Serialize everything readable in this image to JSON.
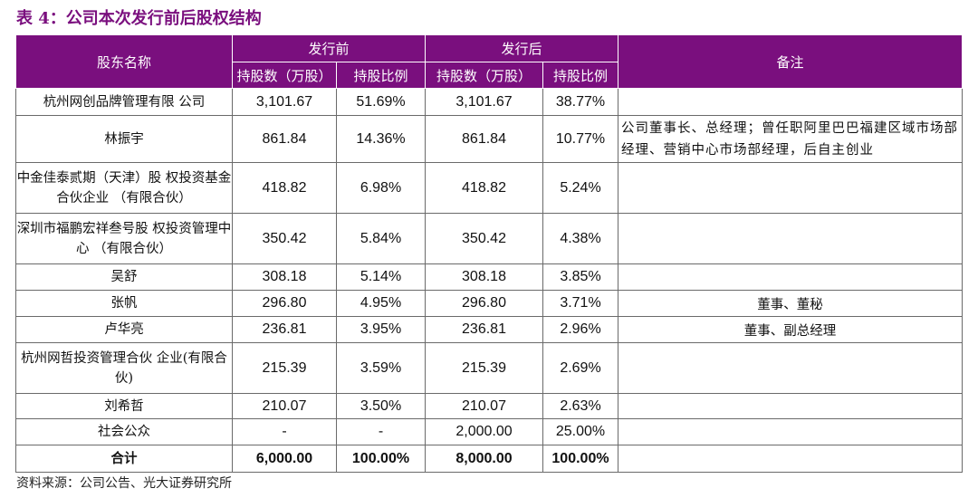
{
  "title": "表 4：公司本次发行前后股权结构",
  "header": {
    "shareholder_col": "股东名称",
    "before_group": "发行前",
    "after_group": "发行后",
    "remark_col": "备注",
    "shares_col": "持股数（万股）",
    "ratio_col": "持股比例"
  },
  "rows": [
    {
      "name": "杭州网创品牌管理有限 公司",
      "before_shares": "3,101.67",
      "before_ratio": "51.69%",
      "after_shares": "3,101.67",
      "after_ratio": "38.77%",
      "remark": ""
    },
    {
      "name": "林振宇",
      "before_shares": "861.84",
      "before_ratio": "14.36%",
      "after_shares": "861.84",
      "after_ratio": "10.77%",
      "remark": "公司董事长、总经理；曾任职阿里巴巴福建区域市场部经理、营销中心市场部经理，后自主创业"
    },
    {
      "name": "中金佳泰贰期（天津）股 权投资基金合伙企业 （有限合伙）",
      "before_shares": "418.82",
      "before_ratio": "6.98%",
      "after_shares": "418.82",
      "after_ratio": "5.24%",
      "remark": ""
    },
    {
      "name": "深圳市福鹏宏祥叁号股 权投资管理中心 （有限合伙）",
      "before_shares": "350.42",
      "before_ratio": "5.84%",
      "after_shares": "350.42",
      "after_ratio": "4.38%",
      "remark": ""
    },
    {
      "name": "吴舒",
      "before_shares": "308.18",
      "before_ratio": "5.14%",
      "after_shares": "308.18",
      "after_ratio": "3.85%",
      "remark": ""
    },
    {
      "name": "张帆",
      "before_shares": "296.80",
      "before_ratio": "4.95%",
      "after_shares": "296.80",
      "after_ratio": "3.71%",
      "remark": "董事、董秘"
    },
    {
      "name": "卢华亮",
      "before_shares": "236.81",
      "before_ratio": "3.95%",
      "after_shares": "236.81",
      "after_ratio": "2.96%",
      "remark": "董事、副总经理"
    },
    {
      "name": "杭州网哲投资管理合伙 企业(有限合伙)",
      "before_shares": "215.39",
      "before_ratio": "3.59%",
      "after_shares": "215.39",
      "after_ratio": "2.69%",
      "remark": ""
    },
    {
      "name": "刘希哲",
      "before_shares": "210.07",
      "before_ratio": "3.50%",
      "after_shares": "210.07",
      "after_ratio": "2.63%",
      "remark": ""
    },
    {
      "name": "社会公众",
      "before_shares": "-",
      "before_ratio": "-",
      "after_shares": "2,000.00",
      "after_ratio": "25.00%",
      "remark": ""
    }
  ],
  "total": {
    "name": "合计",
    "before_shares": "6,000.00",
    "before_ratio": "100.00%",
    "after_shares": "8,000.00",
    "after_ratio": "100.00%",
    "remark": ""
  },
  "source": "资料来源：公司公告、光大证券研究所",
  "colors": {
    "header_bg": "#7a0f7e",
    "title": "#7a0f7e"
  }
}
